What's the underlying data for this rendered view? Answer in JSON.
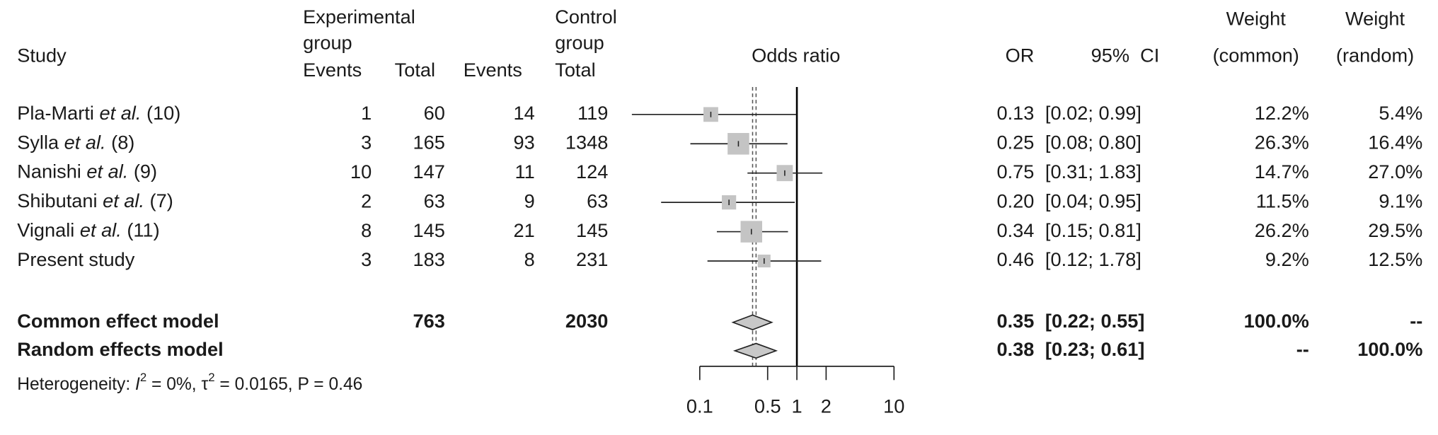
{
  "chart_data": {
    "type": "forest",
    "headers": {
      "study": "Study",
      "exp_line1": "Experimental",
      "exp_line2": "group",
      "exp_events": "Events",
      "exp_total": "Total",
      "ctrl_events": "Events",
      "ctrl_line1": "Control",
      "ctrl_line2": "group",
      "ctrl_total": "Total",
      "plot": "Odds ratio",
      "or": "OR",
      "ci": "95%  CI",
      "w_common_1": "Weight",
      "w_common_2": "(common)",
      "w_random_1": "Weight",
      "w_random_2": "(random)"
    },
    "studies": [
      {
        "name": [
          "Pla-Marti ",
          "et al.",
          " (10)"
        ],
        "exp_events": 1,
        "exp_total": 60,
        "ctrl_events": 14,
        "ctrl_total": 119,
        "or": 0.13,
        "ci": [
          0.02,
          0.99
        ],
        "ci_label": "[0.02; 0.99]",
        "weight_common": {
          "value": 12.2,
          "label": "12.2%"
        },
        "weight_random": {
          "value": 5.4,
          "label": "5.4%"
        }
      },
      {
        "name": [
          "Sylla ",
          "et al.",
          " (8)"
        ],
        "exp_events": 3,
        "exp_total": 165,
        "ctrl_events": 93,
        "ctrl_total": 1348,
        "or": 0.25,
        "ci": [
          0.08,
          0.8
        ],
        "ci_label": "[0.08; 0.80]",
        "weight_common": {
          "value": 26.3,
          "label": "26.3%"
        },
        "weight_random": {
          "value": 16.4,
          "label": "16.4%"
        }
      },
      {
        "name": [
          "Nanishi ",
          "et al.",
          " (9)"
        ],
        "exp_events": 10,
        "exp_total": 147,
        "ctrl_events": 11,
        "ctrl_total": 124,
        "or": 0.75,
        "ci": [
          0.31,
          1.83
        ],
        "ci_label": "[0.31; 1.83]",
        "weight_common": {
          "value": 14.7,
          "label": "14.7%"
        },
        "weight_random": {
          "value": 27.0,
          "label": "27.0%"
        }
      },
      {
        "name": [
          "Shibutani ",
          "et al.",
          " (7)"
        ],
        "exp_events": 2,
        "exp_total": 63,
        "ctrl_events": 9,
        "ctrl_total": 63,
        "or": {
          "value": 0.2,
          "label": "0.20"
        },
        "ci": [
          0.04,
          0.95
        ],
        "ci_label": "[0.04; 0.95]",
        "weight_common": {
          "value": 11.5,
          "label": "11.5%"
        },
        "weight_random": {
          "value": 9.1,
          "label": "9.1%"
        }
      },
      {
        "name": [
          "Vignali ",
          "et al.",
          " (11)"
        ],
        "exp_events": 8,
        "exp_total": 145,
        "ctrl_events": 21,
        "ctrl_total": 145,
        "or": 0.34,
        "ci": [
          0.15,
          0.81
        ],
        "ci_label": "[0.15; 0.81]",
        "weight_common": {
          "value": 26.2,
          "label": "26.2%"
        },
        "weight_random": {
          "value": 29.5,
          "label": "29.5%"
        }
      },
      {
        "name": [
          "Present study"
        ],
        "exp_events": 3,
        "exp_total": 183,
        "ctrl_events": 8,
        "ctrl_total": 231,
        "or": 0.46,
        "ci": [
          0.12,
          1.78
        ],
        "ci_label": "[0.12; 1.78]",
        "weight_common": {
          "value": 9.2,
          "label": "9.2%"
        },
        "weight_random": {
          "value": 12.5,
          "label": "12.5%"
        }
      }
    ],
    "summary": [
      {
        "name": "Common effect model",
        "exp_total": 763,
        "ctrl_total": 2030,
        "or": 0.35,
        "ci": [
          0.22,
          0.55
        ],
        "ci_label": "[0.22; 0.55]",
        "weight_common": {
          "value": 100,
          "label": "100.0%"
        },
        "weight_random": {
          "value": null,
          "label": "--"
        }
      },
      {
        "name": "Random effects model",
        "or": 0.38,
        "ci": [
          0.23,
          0.61
        ],
        "ci_label": "[0.23; 0.61]",
        "weight_common": {
          "value": null,
          "label": "--"
        },
        "weight_random": {
          "value": 100,
          "label": "100.0%"
        }
      }
    ],
    "heterogeneity": [
      "Heterogeneity: ",
      "I",
      "2",
      " = 0%, τ",
      "2",
      " = 0.0165, P = 0.46"
    ],
    "xlog": true,
    "xlim": [
      0.1,
      10
    ],
    "xticks": [
      0.1,
      0.5,
      1,
      2,
      10
    ],
    "reference_line": 1,
    "square_color": "#c4c4c4",
    "diamond_color": "#c8c8c8"
  }
}
